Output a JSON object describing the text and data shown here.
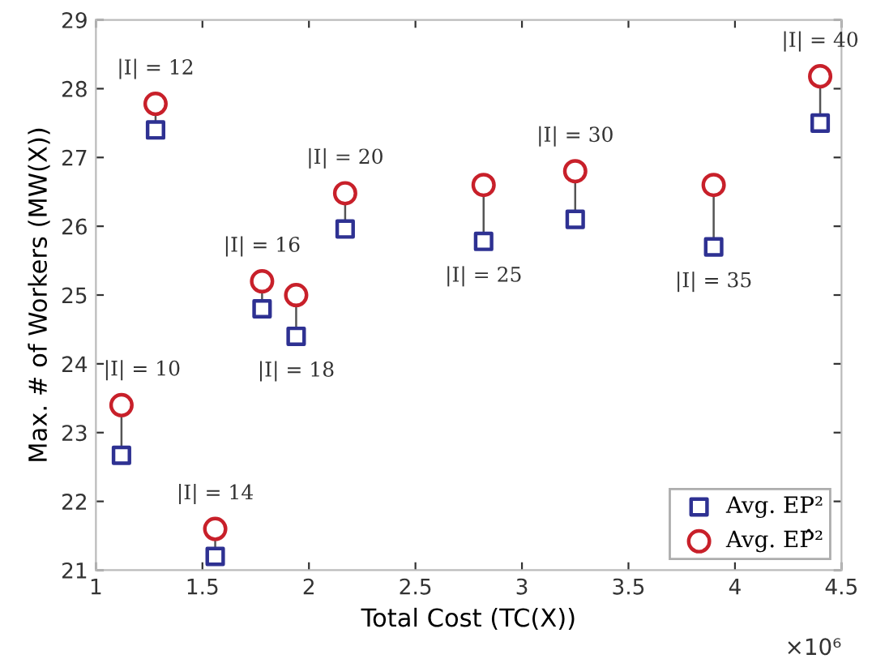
{
  "chart_data": {
    "type": "scatter",
    "xlabel": "Total Cost (TC(X))",
    "ylabel": "Max. # of Workers (MW(X))",
    "x": [
      1.12,
      1.28,
      1.56,
      1.78,
      1.94,
      2.17,
      2.82,
      3.25,
      3.9,
      4.4
    ],
    "series": [
      {
        "name": "Avg. EP²",
        "color": "#2e3192",
        "marker": "square",
        "values": [
          22.67,
          27.4,
          21.2,
          24.8,
          24.4,
          25.96,
          25.78,
          26.1,
          25.7,
          27.5
        ]
      },
      {
        "name": "Avg. EP̂²",
        "color": "#c8202a",
        "marker": "circle",
        "values": [
          23.4,
          27.78,
          21.6,
          25.2,
          25.0,
          26.48,
          26.6,
          26.8,
          26.6,
          28.18
        ]
      }
    ],
    "annotations": [
      {
        "text": "|I| = 10",
        "x": 1.12,
        "y": 23.4
      },
      {
        "text": "|I| = 12",
        "x": 1.28,
        "y": 27.78
      },
      {
        "text": "|I| = 14",
        "x": 1.56,
        "y": 21.6
      },
      {
        "text": "|I| = 16",
        "x": 1.78,
        "y": 25.2
      },
      {
        "text": "|I| = 18",
        "x": 1.94,
        "y": 24.4
      },
      {
        "text": "|I| = 20",
        "x": 2.17,
        "y": 26.48
      },
      {
        "text": "|I| = 25",
        "x": 2.82,
        "y": 25.78
      },
      {
        "text": "|I| = 30",
        "x": 3.25,
        "y": 26.8
      },
      {
        "text": "|I| = 35",
        "x": 3.9,
        "y": 25.7
      },
      {
        "text": "|I| = 40",
        "x": 4.4,
        "y": 28.18
      },
      "×10⁶"
    ],
    "xlim": [
      1,
      4.5
    ],
    "ylim": [
      21,
      29
    ],
    "xticks": [
      1,
      1.5,
      2,
      2.5,
      3,
      3.5,
      4,
      4.5
    ],
    "yticks": [
      21,
      22,
      23,
      24,
      25,
      26,
      27,
      28,
      29
    ],
    "grid": false,
    "legend": "bottom right"
  }
}
